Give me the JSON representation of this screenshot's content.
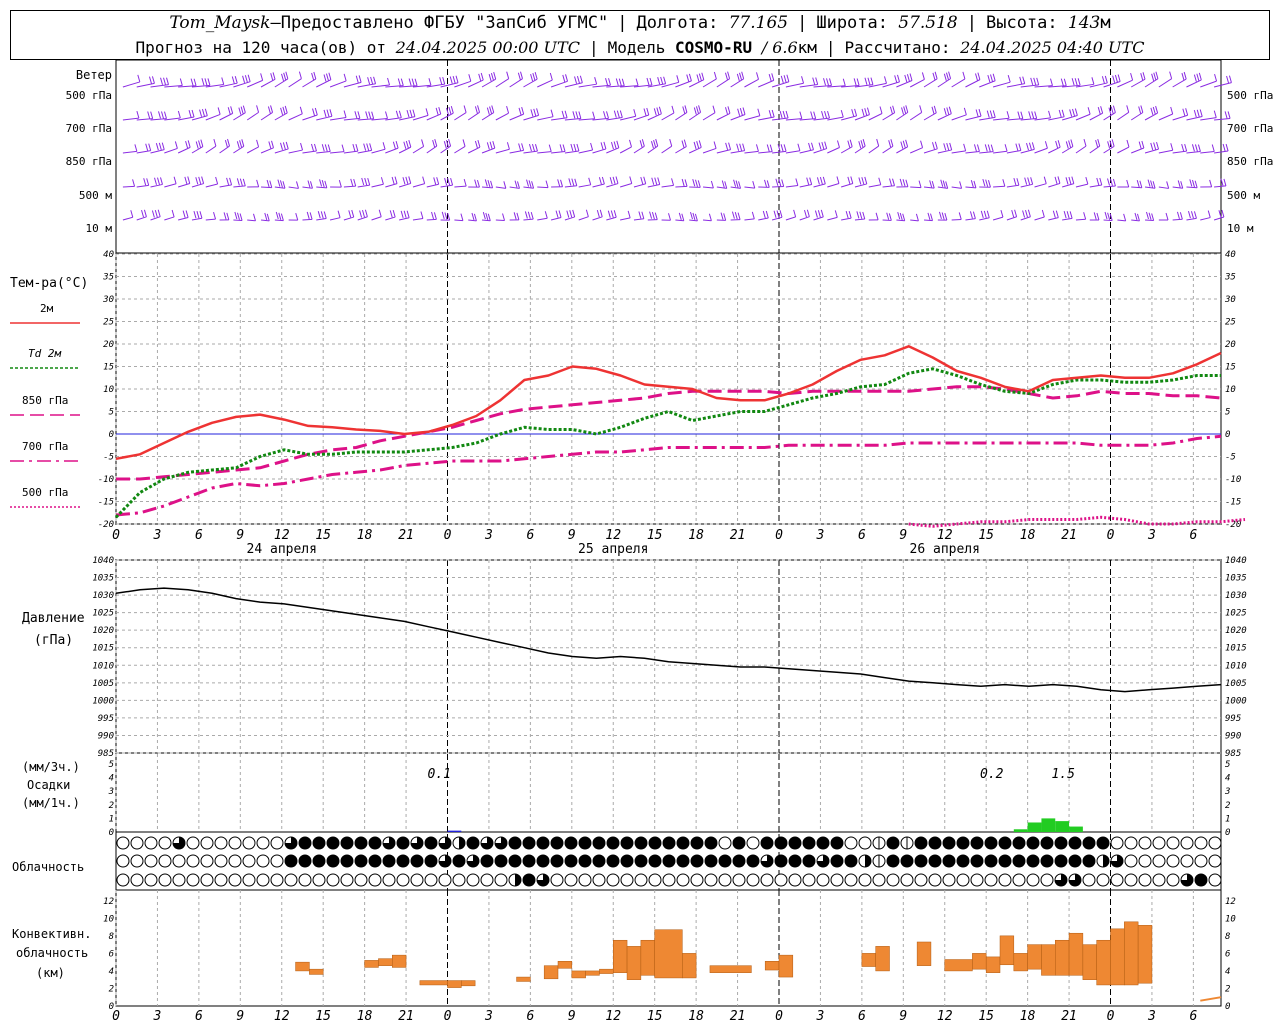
{
  "header": {
    "station": "Tom_Maysk",
    "dash": " – ",
    "provider": "Предоставлено ФГБУ \"ЗапСиб УГМС\"",
    "lon_label": "Долгота:",
    "lon_value": "77.165",
    "lat_label": "Широта:",
    "lat_value": "57.518",
    "alt_label": "Высота:",
    "alt_value": "143",
    "alt_unit": "м",
    "forecast_label": "Прогноз на 120 часа(ов) от",
    "forecast_time": "24.04.2025 00:00 UTC",
    "model_label": "Модель",
    "model_name": "COSMO-RU",
    "model_res": "/ 6.6",
    "model_res_unit": "км",
    "calc_label": "Рассчитано:",
    "calc_time": "24.04.2025 04:40 UTC"
  },
  "wind": {
    "title": "Ветер",
    "levels": [
      "500 гПа",
      "700 гПа",
      "850 гПа",
      "500 м",
      "10  м"
    ],
    "color": "#8a2be2"
  },
  "time_axis": {
    "hour_labels": [
      0,
      3,
      6,
      9,
      12,
      15,
      18,
      21,
      0,
      3,
      6,
      9,
      12,
      15,
      18,
      21,
      0,
      3,
      6,
      9,
      12,
      15,
      18,
      21,
      0,
      3,
      6
    ],
    "date_labels": [
      "24 апреля",
      "25 апреля",
      "26 апреля"
    ]
  },
  "temperature": {
    "title": "Тем-ра(°C)",
    "ylim": [
      -20,
      40
    ],
    "ticks": [
      -20,
      -15,
      -10,
      -5,
      0,
      5,
      10,
      15,
      20,
      25,
      30,
      35,
      40
    ],
    "legend": [
      {
        "label": "2м",
        "color": "#ee3333",
        "style": "solid"
      },
      {
        "label": "Td 2м",
        "color": "#118811",
        "style": "dotted"
      },
      {
        "label": "850 гПа",
        "color": "#dd1188",
        "style": "dashed"
      },
      {
        "label": "700 гПа",
        "color": "#dd1188",
        "style": "dashdot"
      },
      {
        "label": "500 гПа",
        "color": "#dd1188",
        "style": "dots"
      }
    ],
    "series": {
      "t2m": [
        -5.5,
        -4.5,
        -2,
        0.5,
        2.5,
        3.8,
        4.3,
        3.2,
        1.8,
        1.5,
        1,
        0.7,
        0,
        0.5,
        2,
        4,
        7.5,
        12,
        13,
        15,
        14.5,
        13,
        11,
        10.5,
        10,
        8,
        7.5,
        7.5,
        9,
        11,
        14,
        16.5,
        17.5,
        19.5,
        17,
        14,
        12.5,
        10.5,
        9.5,
        12,
        12.5,
        13,
        12.5,
        12.5,
        13.5,
        15.5,
        18
      ],
      "td2m": [
        -18.5,
        -13,
        -10,
        -8.5,
        -8,
        -7.5,
        -5,
        -3.5,
        -4.5,
        -4.5,
        -4,
        -4,
        -4,
        -3.5,
        -3,
        -2,
        0,
        1.5,
        1,
        1,
        0,
        1.5,
        3.5,
        5,
        3,
        4,
        5,
        5,
        6.5,
        8,
        9,
        10.5,
        11,
        13.5,
        14.5,
        13,
        11,
        9.5,
        9,
        11,
        12,
        12,
        11.5,
        11.5,
        12,
        13,
        13
      ],
      "t850": [
        -10,
        -10,
        -9.5,
        -9,
        -8.5,
        -8,
        -7.5,
        -6,
        -4.5,
        -3.5,
        -3,
        -1.5,
        -0.5,
        0.5,
        1.5,
        3,
        4.5,
        5.5,
        6,
        6.5,
        7,
        7.5,
        8,
        9,
        9.5,
        9.5,
        9.5,
        9.5,
        9,
        9.5,
        9.5,
        9.5,
        9.5,
        9.5,
        10,
        10.5,
        10.5,
        10,
        9,
        8,
        8.5,
        9.5,
        9,
        9,
        8.5,
        8.5,
        8
      ],
      "t700": [
        -18,
        -17.5,
        -16,
        -14,
        -12,
        -11,
        -11.5,
        -11,
        -10,
        -9,
        -8.5,
        -8,
        -7,
        -6.5,
        -6,
        -6,
        -6,
        -5.5,
        -5,
        -4.5,
        -4,
        -4,
        -3.5,
        -3,
        -3,
        -3,
        -3,
        -3,
        -2.5,
        -2.5,
        -2.5,
        -2.5,
        -2.5,
        -2,
        -2,
        -2,
        -2,
        -2,
        -2,
        -2,
        -2,
        -2.5,
        -2.5,
        -2.5,
        -2,
        -1,
        -0.5
      ],
      "t500_start": 33,
      "t500": [
        -20,
        -20.5,
        -20,
        -19.5,
        -19.5,
        -19,
        -19,
        -19,
        -18.5,
        -19,
        -20,
        -20,
        -19.5,
        -19.5,
        -19
      ]
    }
  },
  "pressure": {
    "title": "Давление",
    "unit": "(гПа)",
    "ylim": [
      985,
      1040
    ],
    "ticks": [
      985,
      990,
      995,
      1000,
      1005,
      1010,
      1015,
      1020,
      1025,
      1030,
      1035,
      1040
    ],
    "values": [
      1030.5,
      1031.5,
      1032,
      1031.5,
      1030.5,
      1029,
      1028,
      1027.5,
      1026.5,
      1025.5,
      1024.5,
      1023.5,
      1022.5,
      1021,
      1019.5,
      1018,
      1016.5,
      1015,
      1013.5,
      1012.5,
      1012,
      1012.5,
      1012,
      1011,
      1010.5,
      1010,
      1009.5,
      1009.5,
      1009,
      1008.5,
      1008,
      1007.5,
      1006.5,
      1005.5,
      1005,
      1004.5,
      1004,
      1004.5,
      1004,
      1004.5,
      1004,
      1003,
      1002.5,
      1003,
      1003.5,
      1004,
      1004.5
    ]
  },
  "precip": {
    "unit_3h": "(мм/3ч.)",
    "title": "Осадки",
    "unit_1h": "(мм/1ч.)",
    "ylim": [
      0,
      5
    ],
    "ticks": [
      0,
      1,
      2,
      3,
      4,
      5
    ],
    "annotations": [
      {
        "text": "0.1",
        "hour": 24
      },
      {
        "text": "0.2",
        "hour": 64
      },
      {
        "text": "1.5",
        "hour": 67
      }
    ],
    "bars_hour": [
      24,
      65,
      66,
      67,
      68,
      69
    ],
    "bars_value": [
      0.1,
      0.2,
      0.7,
      1.0,
      0.8,
      0.4
    ],
    "color": "#22cc22"
  },
  "clouds": {
    "title": "Облачность",
    "rows": [
      "0000300000003444444343432433444444444444444040444444001414444444444444400000000",
      "0000000000004444444444434344444444444444444444344434421444444444444444230000000",
      "0000000000000000000000000000243000000000000000000000000000000000000330000000340"
    ]
  },
  "convective": {
    "title_line1": "Конвективн.",
    "title_line2": "облачность",
    "unit": "(км)",
    "ylim": [
      0,
      13
    ],
    "ticks": [
      0,
      2,
      4,
      6,
      8,
      10,
      12
    ],
    "color": "#ee8833",
    "bars": [
      {
        "h": 13,
        "w": 1,
        "b": 4,
        "t": 5
      },
      {
        "h": 14,
        "w": 1,
        "b": 3.6,
        "t": 4.2
      },
      {
        "h": 18,
        "w": 1,
        "b": 4.4,
        "t": 5.2
      },
      {
        "h": 19,
        "w": 1,
        "b": 4.6,
        "t": 5.4
      },
      {
        "h": 20,
        "w": 1,
        "b": 4.4,
        "t": 5.8
      },
      {
        "h": 22,
        "w": 2,
        "b": 2.4,
        "t": 2.9
      },
      {
        "h": 24,
        "w": 1,
        "b": 2.1,
        "t": 2.9
      },
      {
        "h": 25,
        "w": 1,
        "b": 2.3,
        "t": 2.9
      },
      {
        "h": 29,
        "w": 1,
        "b": 2.8,
        "t": 3.3
      },
      {
        "h": 31,
        "w": 1,
        "b": 3.1,
        "t": 4.6
      },
      {
        "h": 32,
        "w": 1,
        "b": 4.3,
        "t": 5.1
      },
      {
        "h": 33,
        "w": 1,
        "b": 3.2,
        "t": 4.0
      },
      {
        "h": 34,
        "w": 1,
        "b": 3.5,
        "t": 4.0
      },
      {
        "h": 35,
        "w": 1,
        "b": 3.7,
        "t": 4.2
      },
      {
        "h": 36,
        "w": 1,
        "b": 3.8,
        "t": 7.5
      },
      {
        "h": 37,
        "w": 1,
        "b": 3.0,
        "t": 6.8
      },
      {
        "h": 38,
        "w": 1,
        "b": 3.5,
        "t": 7.5
      },
      {
        "h": 39,
        "w": 2,
        "b": 3.2,
        "t": 8.7
      },
      {
        "h": 41,
        "w": 1,
        "b": 3.2,
        "t": 6.0
      },
      {
        "h": 43,
        "w": 3,
        "b": 3.8,
        "t": 4.6
      },
      {
        "h": 47,
        "w": 1,
        "b": 4.1,
        "t": 5.1
      },
      {
        "h": 48,
        "w": 1,
        "b": 3.3,
        "t": 5.8
      },
      {
        "h": 54,
        "w": 1,
        "b": 4.5,
        "t": 6.0
      },
      {
        "h": 55,
        "w": 1,
        "b": 4.0,
        "t": 6.8
      },
      {
        "h": 58,
        "w": 1,
        "b": 4.6,
        "t": 7.3
      },
      {
        "h": 60,
        "w": 2,
        "b": 4.0,
        "t": 5.3
      },
      {
        "h": 62,
        "w": 1,
        "b": 4.2,
        "t": 6.0
      },
      {
        "h": 63,
        "w": 1,
        "b": 3.8,
        "t": 5.6
      },
      {
        "h": 64,
        "w": 1,
        "b": 4.7,
        "t": 8.0
      },
      {
        "h": 65,
        "w": 1,
        "b": 4.0,
        "t": 6.0
      },
      {
        "h": 66,
        "w": 1,
        "b": 4.2,
        "t": 7.0
      },
      {
        "h": 67,
        "w": 1,
        "b": 3.5,
        "t": 7.0
      },
      {
        "h": 68,
        "w": 1,
        "b": 3.5,
        "t": 7.5
      },
      {
        "h": 69,
        "w": 1,
        "b": 3.5,
        "t": 8.3
      },
      {
        "h": 70,
        "w": 1,
        "b": 3.0,
        "t": 7.0
      },
      {
        "h": 71,
        "w": 1,
        "b": 2.4,
        "t": 7.5
      },
      {
        "h": 72,
        "w": 1,
        "b": 2.4,
        "t": 8.8
      },
      {
        "h": 73,
        "w": 1,
        "b": 2.4,
        "t": 9.6
      },
      {
        "h": 74,
        "w": 1,
        "b": 2.6,
        "t": 9.2
      }
    ],
    "tail_line": [
      [
        3.5,
        0.6
      ],
      [
        5,
        1.0
      ]
    ]
  },
  "chart_data": [
    {
      "type": "line",
      "title": "Тем-ра(°C)",
      "ylim": [
        -20,
        40
      ],
      "note_x": "step = 1.5 h from 0 UTC 24.04"
    },
    {
      "type": "line",
      "title": "Давление",
      "ylabel": "(гПа)",
      "ylim": [
        985,
        1040
      ]
    },
    {
      "type": "bar",
      "title": "Осадки",
      "ylim": [
        0,
        5
      ]
    },
    {
      "type": "bar",
      "title": "Конвективн. облачность",
      "ylabel": "(км)",
      "ylim": [
        0,
        13
      ]
    }
  ]
}
